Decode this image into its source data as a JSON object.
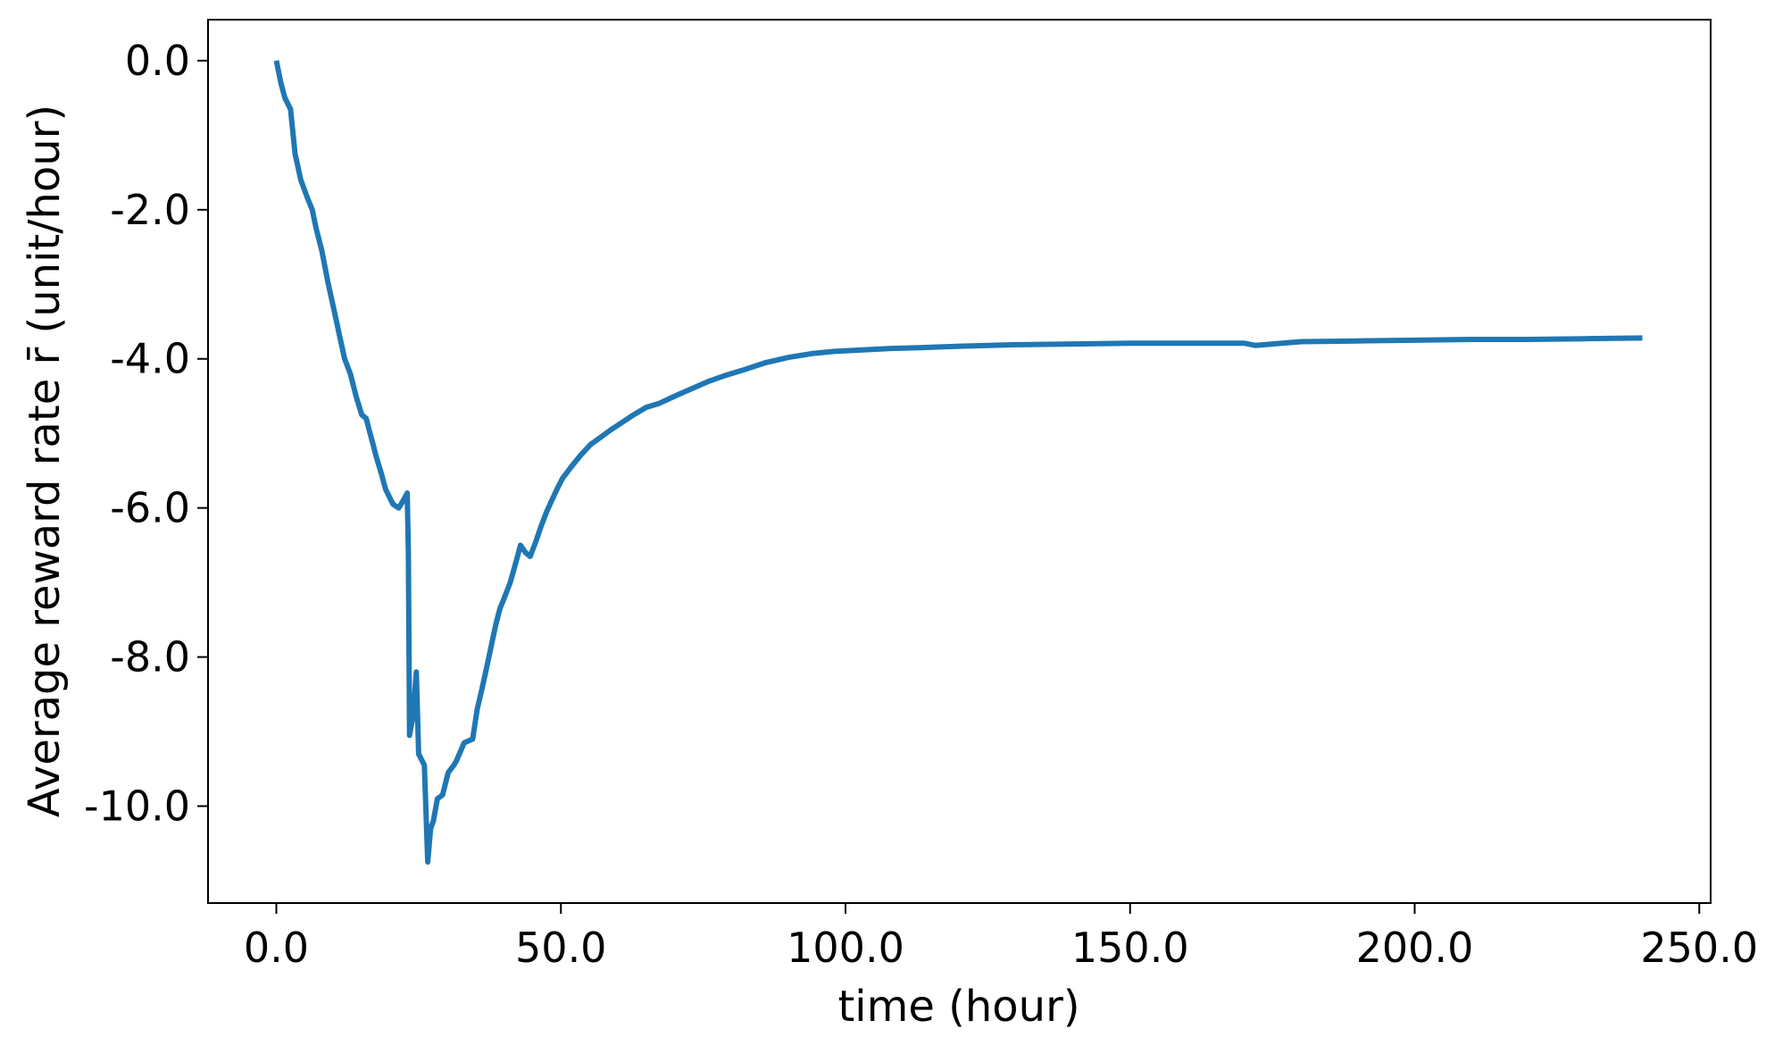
{
  "chart_data": {
    "type": "line",
    "title": "",
    "xlabel": "time (hour)",
    "ylabel": "Average reward rate r̄ (unit/hour)",
    "xlim": [
      -12,
      252
    ],
    "ylim": [
      -11.3,
      0.55
    ],
    "xticks": [
      0,
      50,
      100,
      150,
      200,
      250
    ],
    "xtick_labels": [
      "0.0",
      "50.0",
      "100.0",
      "150.0",
      "200.0",
      "250.0"
    ],
    "yticks": [
      0,
      -2,
      -4,
      -6,
      -8,
      -10
    ],
    "ytick_labels": [
      "0.0",
      "-2.0",
      "-4.0",
      "-6.0",
      "-8.0",
      "-10.0"
    ],
    "grid": false,
    "series": [
      {
        "color": "#1f77b4",
        "x": [
          0,
          0.8,
          1.5,
          2.5,
          3.3,
          4.3,
          5.5,
          6.3,
          7,
          8,
          9,
          10,
          11,
          12,
          13,
          14,
          15,
          15.8,
          16.3,
          17,
          17.5,
          18.5,
          19.2,
          20.5,
          21.5,
          22.3,
          23,
          23.2,
          23.4,
          24,
          24.6,
          25,
          26,
          26.6,
          27.1,
          27.6,
          28.3,
          29.2,
          30.2,
          31.2,
          31.6,
          33,
          34.5,
          35.3,
          35.9,
          36.5,
          37.2,
          37.9,
          38.6,
          39.3,
          40.1,
          41.1,
          42.2,
          42.9,
          43.8,
          44.6,
          45.6,
          46.5,
          47.5,
          48.4,
          49.3,
          50.3,
          51.8,
          53.4,
          55.2,
          57,
          58.8,
          60.8,
          62.8,
          65,
          67.2,
          70,
          73,
          76,
          79,
          82,
          86,
          90,
          94,
          98,
          103,
          108,
          113,
          120,
          130,
          140,
          150,
          160,
          170,
          172,
          180,
          190,
          200,
          210,
          220,
          230,
          240
        ],
        "values": [
          0,
          -0.3,
          -0.5,
          -0.65,
          -1.25,
          -1.6,
          -1.85,
          -2.0,
          -2.25,
          -2.55,
          -2.95,
          -3.3,
          -3.65,
          -4.0,
          -4.2,
          -4.5,
          -4.75,
          -4.8,
          -4.95,
          -5.15,
          -5.3,
          -5.55,
          -5.75,
          -5.95,
          -6.0,
          -5.9,
          -5.8,
          -6.6,
          -9.05,
          -8.8,
          -8.2,
          -9.3,
          -9.45,
          -10.75,
          -10.3,
          -10.2,
          -9.9,
          -9.85,
          -9.55,
          -9.45,
          -9.4,
          -9.15,
          -9.1,
          -8.7,
          -8.5,
          -8.3,
          -8.05,
          -7.8,
          -7.55,
          -7.35,
          -7.2,
          -7.0,
          -6.7,
          -6.5,
          -6.6,
          -6.65,
          -6.45,
          -6.25,
          -6.05,
          -5.9,
          -5.75,
          -5.6,
          -5.45,
          -5.3,
          -5.15,
          -5.05,
          -4.95,
          -4.85,
          -4.75,
          -4.65,
          -4.6,
          -4.5,
          -4.4,
          -4.3,
          -4.22,
          -4.15,
          -4.05,
          -3.98,
          -3.93,
          -3.9,
          -3.88,
          -3.86,
          -3.85,
          -3.83,
          -3.81,
          -3.8,
          -3.79,
          -3.79,
          -3.79,
          -3.82,
          -3.77,
          -3.76,
          -3.75,
          -3.74,
          -3.74,
          -3.73,
          -3.72
        ]
      }
    ]
  }
}
